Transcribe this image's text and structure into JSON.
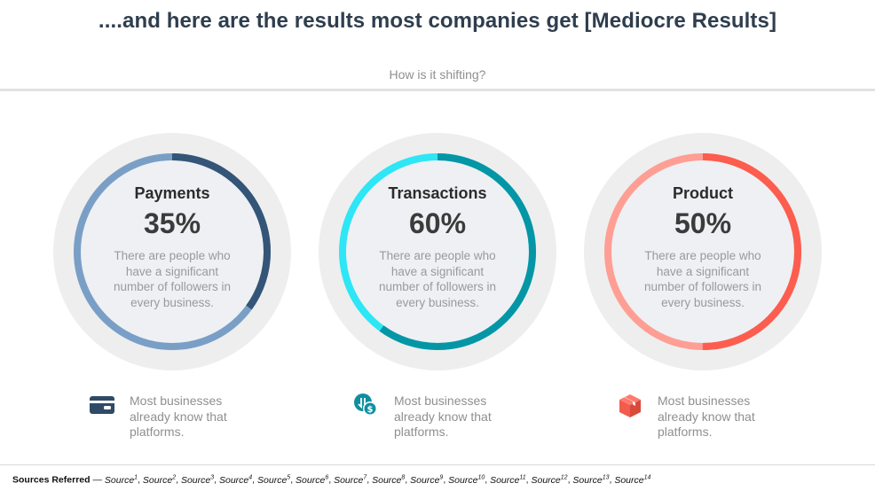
{
  "header": {
    "title": "....and here are the results most companies get [Mediocre Results]",
    "subtitle": "How is it shifting?"
  },
  "cards": [
    {
      "label": "Payments",
      "percent_text": "35%",
      "percent": 35,
      "description": "There are people who have a significant number of followers in every business.",
      "colors": {
        "light": "#7a9fc6",
        "dark": "#345577"
      }
    },
    {
      "label": "Transactions",
      "percent_text": "60%",
      "percent": 60,
      "description": "There are people who have a significant number of followers in every business.",
      "colors": {
        "light": "#2ee6f5",
        "dark": "#0596a6"
      }
    },
    {
      "label": "Product",
      "percent_text": "50%",
      "percent": 50,
      "description": "There are people who have a significant number of followers in every business.",
      "colors": {
        "light": "#ff9e94",
        "dark": "#fc5d4e"
      }
    }
  ],
  "infos": [
    {
      "icon": "credit-card-icon",
      "text": "Most businesses already know that platforms.",
      "color": "#2f4a66"
    },
    {
      "icon": "money-transfer-icon",
      "text": "Most businesses already know that platforms.",
      "color": "#0f8f9e"
    },
    {
      "icon": "box-icon",
      "text": "Most businesses already know that platforms.",
      "color": "#f25c4c"
    }
  ],
  "footer": {
    "label": "Sources Referred",
    "separator": " — ",
    "sources": [
      {
        "name": "Source",
        "sup": "1"
      },
      {
        "name": "Source",
        "sup": "2"
      },
      {
        "name": "Source",
        "sup": "3"
      },
      {
        "name": "Source",
        "sup": "4"
      },
      {
        "name": "Source",
        "sup": "5"
      },
      {
        "name": "Source",
        "sup": "6"
      },
      {
        "name": "Source",
        "sup": "7"
      },
      {
        "name": "Source",
        "sup": "8"
      },
      {
        "name": "Source",
        "sup": "9"
      },
      {
        "name": "Source",
        "sup": "10"
      },
      {
        "name": "Source",
        "sup": "11"
      },
      {
        "name": "Source",
        "sup": "12"
      },
      {
        "name": "Source",
        "sup": "13"
      },
      {
        "name": "Source",
        "sup": "14"
      }
    ]
  }
}
